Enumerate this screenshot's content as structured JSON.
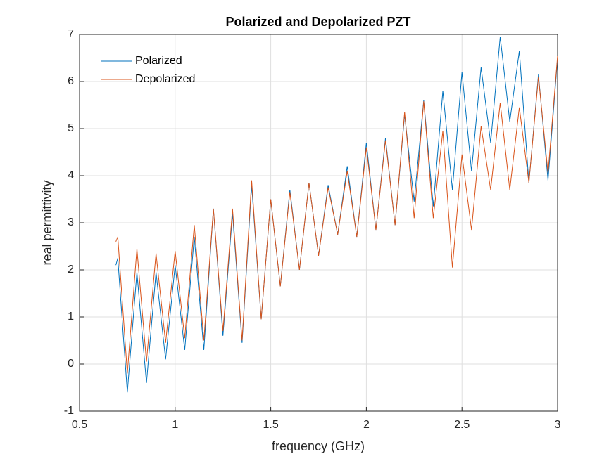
{
  "chart_data": {
    "type": "line",
    "title": "Polarized and Depolarized PZT",
    "x_label": "frequency (GHz)",
    "y_label": "real permittivity",
    "x": [
      0.69,
      0.7,
      0.75,
      0.8,
      0.85,
      0.9,
      0.95,
      1.0,
      1.05,
      1.1,
      1.15,
      1.2,
      1.25,
      1.3,
      1.35,
      1.4,
      1.45,
      1.5,
      1.55,
      1.6,
      1.65,
      1.7,
      1.75,
      1.8,
      1.85,
      1.9,
      1.95,
      2.0,
      2.05,
      2.1,
      2.15,
      2.2,
      2.25,
      2.3,
      2.35,
      2.4,
      2.45,
      2.5,
      2.55,
      2.6,
      2.65,
      2.7,
      2.75,
      2.8,
      2.85,
      2.9,
      2.95,
      3.0
    ],
    "series": [
      {
        "name": "Polarized",
        "color": "#0072bd",
        "values": [
          2.1,
          2.25,
          -0.6,
          1.95,
          -0.4,
          1.95,
          0.1,
          2.1,
          0.3,
          2.7,
          0.3,
          3.3,
          0.6,
          3.2,
          0.45,
          3.8,
          0.95,
          3.5,
          1.65,
          3.7,
          2.0,
          3.85,
          2.3,
          3.8,
          2.75,
          4.2,
          2.7,
          4.7,
          2.85,
          4.8,
          2.95,
          5.3,
          3.45,
          5.6,
          3.35,
          5.8,
          3.7,
          6.2,
          4.1,
          6.3,
          4.7,
          6.95,
          5.15,
          6.65,
          3.85,
          6.15,
          3.9,
          6.5
        ]
      },
      {
        "name": "Depolarized",
        "color": "#d95319",
        "values": [
          2.6,
          2.7,
          -0.2,
          2.45,
          0.05,
          2.35,
          0.45,
          2.4,
          0.55,
          2.95,
          0.5,
          3.3,
          0.7,
          3.3,
          0.5,
          3.9,
          0.95,
          3.5,
          1.65,
          3.65,
          2.0,
          3.85,
          2.3,
          3.75,
          2.75,
          4.1,
          2.7,
          4.6,
          2.85,
          4.75,
          2.95,
          5.35,
          3.1,
          5.58,
          3.1,
          4.95,
          2.05,
          4.45,
          2.85,
          5.05,
          3.7,
          5.55,
          3.7,
          5.45,
          3.85,
          6.1,
          4.05,
          6.55
        ]
      }
    ],
    "xlim": [
      0.5,
      3
    ],
    "xticks": [
      0.5,
      1,
      1.5,
      2,
      2.5,
      3
    ],
    "ylim": [
      -1,
      7
    ],
    "yticks": [
      -1,
      0,
      1,
      2,
      3,
      4,
      5,
      6,
      7
    ],
    "grid": true,
    "legend": "top-left"
  }
}
